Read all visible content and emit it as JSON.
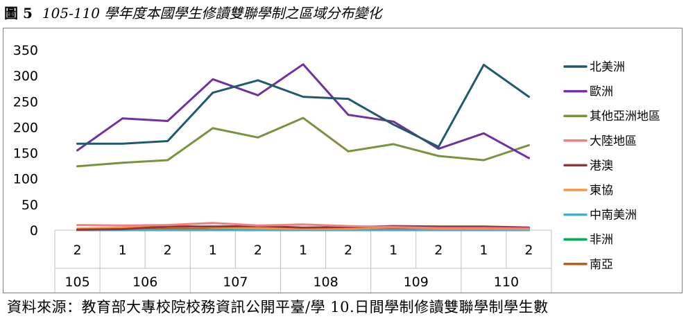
{
  "figure": {
    "number": "圖 5",
    "title": "105-110 學年度本國學生修讀雙聯學制之區域分布變化"
  },
  "source_note": "資料來源：教育部大專校院校務資訊公開平臺/學 10.日間學制修讀雙聯學制學生數",
  "chart_data": {
    "type": "line",
    "title": "",
    "xlabel": "",
    "ylabel": "",
    "ylim": [
      0,
      350
    ],
    "yticks": [
      0,
      50,
      100,
      150,
      200,
      250,
      300,
      350
    ],
    "grid": true,
    "legend_position": "right",
    "categories": [
      {
        "semester": "2",
        "year": "105"
      },
      {
        "semester": "1",
        "year": "106"
      },
      {
        "semester": "2",
        "year": "106"
      },
      {
        "semester": "1",
        "year": "107"
      },
      {
        "semester": "2",
        "year": "107"
      },
      {
        "semester": "1",
        "year": "108"
      },
      {
        "semester": "2",
        "year": "108"
      },
      {
        "semester": "1",
        "year": "109"
      },
      {
        "semester": "2",
        "year": "109"
      },
      {
        "semester": "1",
        "year": "110"
      },
      {
        "semester": "2",
        "year": "110"
      }
    ],
    "year_groups": [
      {
        "label": "105",
        "start": 0,
        "end": 0
      },
      {
        "label": "106",
        "start": 1,
        "end": 2
      },
      {
        "label": "107",
        "start": 3,
        "end": 4
      },
      {
        "label": "108",
        "start": 5,
        "end": 6
      },
      {
        "label": "109",
        "start": 7,
        "end": 8
      },
      {
        "label": "110",
        "start": 9,
        "end": 10
      }
    ],
    "series": [
      {
        "name": "北美洲",
        "color": "#1f5a6a",
        "values": [
          168,
          168,
          173,
          267,
          291,
          259,
          255,
          205,
          162,
          321,
          259
        ]
      },
      {
        "name": "歐洲",
        "color": "#7030a0",
        "values": [
          155,
          217,
          212,
          293,
          262,
          322,
          224,
          211,
          158,
          188,
          140
        ]
      },
      {
        "name": "其他亞洲地區",
        "color": "#77933c",
        "values": [
          124,
          131,
          136,
          198,
          180,
          218,
          153,
          167,
          144,
          136,
          165
        ]
      },
      {
        "name": "大陸地區",
        "color": "#f08080",
        "values": [
          10,
          9,
          10,
          14,
          9,
          11,
          8,
          6,
          4,
          4,
          3
        ]
      },
      {
        "name": "港澳",
        "color": "#943634",
        "values": [
          1,
          2,
          7,
          7,
          8,
          5,
          6,
          8,
          7,
          7,
          5
        ]
      },
      {
        "name": "東協",
        "color": "#f79646",
        "values": [
          3,
          5,
          10,
          5,
          4,
          3,
          3,
          6,
          3,
          3,
          2
        ]
      },
      {
        "name": "中南美洲",
        "color": "#4bacc6",
        "values": [
          0,
          0,
          0,
          0,
          0,
          0,
          0,
          0,
          0,
          0,
          0
        ]
      },
      {
        "name": "非洲",
        "color": "#00b050",
        "values": [
          0,
          0,
          0,
          0,
          1,
          0,
          0,
          0,
          0,
          0,
          0
        ]
      },
      {
        "name": "南亞",
        "color": "#c55a11",
        "values": [
          2,
          2,
          3,
          2,
          1,
          1,
          2,
          2,
          2,
          2,
          1
        ]
      }
    ]
  }
}
